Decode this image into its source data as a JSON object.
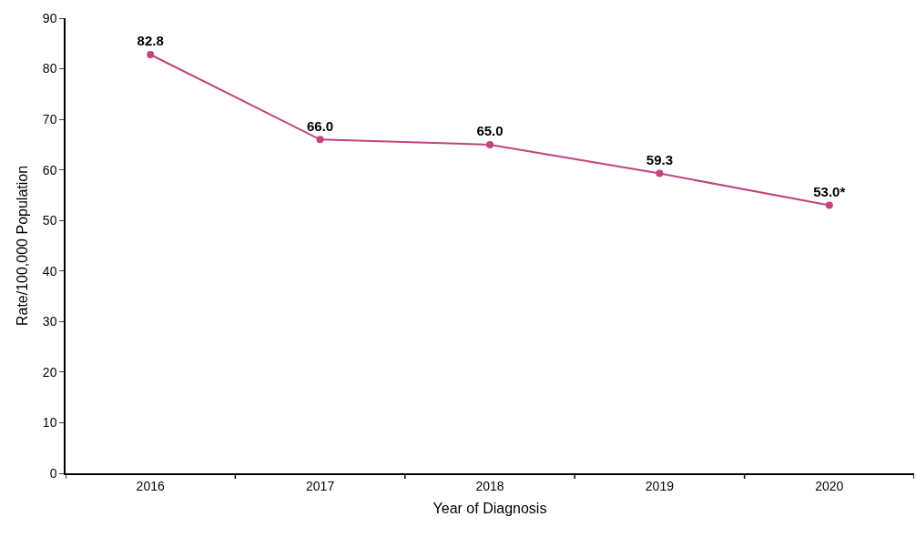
{
  "chart_data": {
    "type": "line",
    "xlabel": "Year of Diagnosis",
    "ylabel": "Rate/100,000 Population",
    "categories": [
      "2016",
      "2017",
      "2018",
      "2019",
      "2020"
    ],
    "series": [
      {
        "color": "#c0457a",
        "values": [
          82.8,
          66.0,
          65.0,
          59.3,
          53.0
        ],
        "value_labels": [
          "82.8",
          "66.0",
          "65.0",
          "59.3",
          "53.0*"
        ]
      }
    ],
    "ylim": [
      0,
      90
    ],
    "yticks": [
      0,
      10,
      20,
      30,
      40,
      50,
      60,
      70,
      80,
      90
    ],
    "grid": false,
    "marker": "circle",
    "line_style": "solid"
  }
}
